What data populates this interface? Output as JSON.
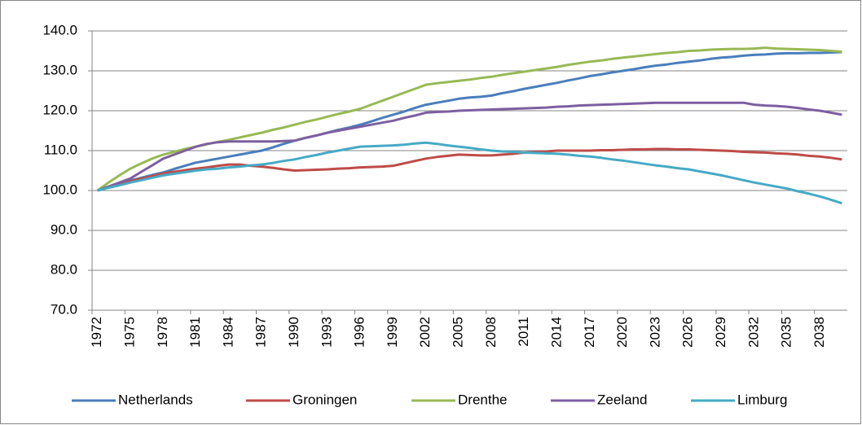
{
  "chart_data": {
    "type": "line",
    "categories": [
      "1972",
      null,
      null,
      "1975",
      null,
      null,
      "1978",
      null,
      null,
      "1981",
      null,
      null,
      "1984",
      null,
      null,
      "1987",
      null,
      null,
      "1990",
      null,
      null,
      "1993",
      null,
      null,
      "1996",
      null,
      null,
      "1999",
      null,
      null,
      "2002",
      null,
      null,
      "2005",
      null,
      null,
      "2008",
      null,
      null,
      "2011",
      null,
      null,
      "2014",
      null,
      null,
      "2017",
      null,
      null,
      "2020",
      null,
      null,
      "2023",
      null,
      null,
      "2026",
      null,
      null,
      "2029",
      null,
      null,
      "2032",
      null,
      null,
      "2035",
      null,
      null,
      "2038",
      null,
      null
    ],
    "series": [
      {
        "name": "Netherlands",
        "color": "#4a7ebb",
        "values": [
          100,
          100.8,
          101.7,
          102.5,
          103.2,
          103.9,
          104.5,
          105.4,
          106.2,
          107,
          107.5,
          108,
          108.5,
          109,
          109.5,
          110,
          110.8,
          111.7,
          112.5,
          113.2,
          113.8,
          114.5,
          115.2,
          115.8,
          116.5,
          117.3,
          118.2,
          119,
          119.8,
          120.7,
          121.5,
          122,
          122.5,
          123,
          123.3,
          123.5,
          123.8,
          124.4,
          124.9,
          125.5,
          126,
          126.5,
          127,
          127.6,
          128.1,
          128.7,
          129.1,
          129.6,
          130,
          130.4,
          130.9,
          131.3,
          131.6,
          132,
          132.3,
          132.6,
          133,
          133.3,
          133.5,
          133.8,
          134,
          134.1,
          134.3,
          134.4,
          134.4,
          134.5,
          134.5,
          134.6,
          134.7
        ]
      },
      {
        "name": "Groningen",
        "color": "#be4b48",
        "values": [
          100,
          100.8,
          101.5,
          102.3,
          103,
          103.6,
          104.3,
          104.7,
          105.1,
          105.5,
          105.8,
          106.2,
          106.5,
          106.5,
          106.2,
          106,
          105.7,
          105.3,
          105,
          105.1,
          105.2,
          105.3,
          105.5,
          105.6,
          105.8,
          105.9,
          106,
          106.2,
          106.8,
          107.4,
          108,
          108.4,
          108.7,
          109,
          108.9,
          108.8,
          108.8,
          109,
          109.2,
          109.5,
          109.7,
          109.8,
          110,
          110,
          110,
          110,
          110.1,
          110.1,
          110.2,
          110.3,
          110.3,
          110.4,
          110.4,
          110.3,
          110.3,
          110.2,
          110.1,
          110,
          109.9,
          109.7,
          109.6,
          109.5,
          109.3,
          109.2,
          109,
          108.7,
          108.5,
          108.2,
          107.8
        ]
      },
      {
        "name": "Drenthe",
        "color": "#98b954",
        "values": [
          100,
          102,
          103.8,
          105.5,
          106.8,
          108,
          109,
          109.7,
          110.4,
          111,
          111.6,
          112.2,
          112.7,
          113.3,
          113.9,
          114.5,
          115.2,
          115.8,
          116.5,
          117.2,
          117.8,
          118.5,
          119.2,
          119.8,
          120.5,
          121.5,
          122.5,
          123.5,
          124.5,
          125.5,
          126.5,
          126.9,
          127.2,
          127.5,
          127.8,
          128.2,
          128.5,
          129,
          129.4,
          129.8,
          130.2,
          130.6,
          131,
          131.5,
          131.9,
          132.3,
          132.6,
          133,
          133.3,
          133.6,
          133.9,
          134.2,
          134.5,
          134.7,
          135,
          135.1,
          135.3,
          135.4,
          135.5,
          135.5,
          135.6,
          135.8,
          135.6,
          135.5,
          135.4,
          135.3,
          135.2,
          135,
          134.8
        ]
      },
      {
        "name": "Zeeland",
        "color": "#7d5fa0",
        "values": [
          100,
          101,
          102,
          103,
          104.7,
          106.3,
          108,
          109,
          110,
          111,
          111.7,
          112.1,
          112.3,
          112.3,
          112.3,
          112.3,
          112.3,
          112.4,
          112.5,
          113.2,
          113.8,
          114.5,
          115,
          115.5,
          116,
          116.5,
          117,
          117.5,
          118.2,
          118.8,
          119.5,
          119.7,
          119.8,
          120,
          120.1,
          120.2,
          120.3,
          120.4,
          120.5,
          120.6,
          120.7,
          120.8,
          121,
          121.1,
          121.3,
          121.4,
          121.5,
          121.6,
          121.7,
          121.8,
          121.9,
          122,
          122,
          122,
          122,
          122,
          122,
          122,
          122,
          122,
          121.5,
          121.3,
          121.2,
          121,
          120.7,
          120.3,
          120,
          119.5,
          119
        ]
      },
      {
        "name": "Limburg",
        "color": "#46aac5",
        "values": [
          100,
          100.7,
          101.3,
          102,
          102.6,
          103.2,
          103.8,
          104.2,
          104.6,
          105,
          105.3,
          105.5,
          105.8,
          106,
          106.3,
          106.5,
          106.9,
          107.4,
          107.8,
          108.4,
          108.9,
          109.5,
          110,
          110.5,
          111,
          111.1,
          111.2,
          111.3,
          111.5,
          111.8,
          112,
          111.7,
          111.3,
          111,
          110.7,
          110.3,
          110,
          109.8,
          109.7,
          109.5,
          109.4,
          109.3,
          109.2,
          109,
          108.7,
          108.5,
          108.2,
          107.8,
          107.5,
          107.1,
          106.7,
          106.3,
          106,
          105.6,
          105.3,
          104.8,
          104.3,
          103.8,
          103.2,
          102.6,
          102,
          101.5,
          101,
          100.5,
          99.8,
          99.2,
          98.5,
          97.7,
          96.8
        ]
      }
    ],
    "ylim": [
      70,
      140
    ],
    "yticks": [
      {
        "value": 70,
        "label": "70.0"
      },
      {
        "value": 80,
        "label": "80.0"
      },
      {
        "value": 90,
        "label": "90.0"
      },
      {
        "value": 100,
        "label": "100.0"
      },
      {
        "value": 110,
        "label": "110.0"
      },
      {
        "value": 120,
        "label": "120.0"
      },
      {
        "value": 130,
        "label": "130.0"
      },
      {
        "value": 140,
        "label": "140.0"
      }
    ],
    "grid": true,
    "legend": "bottom"
  }
}
